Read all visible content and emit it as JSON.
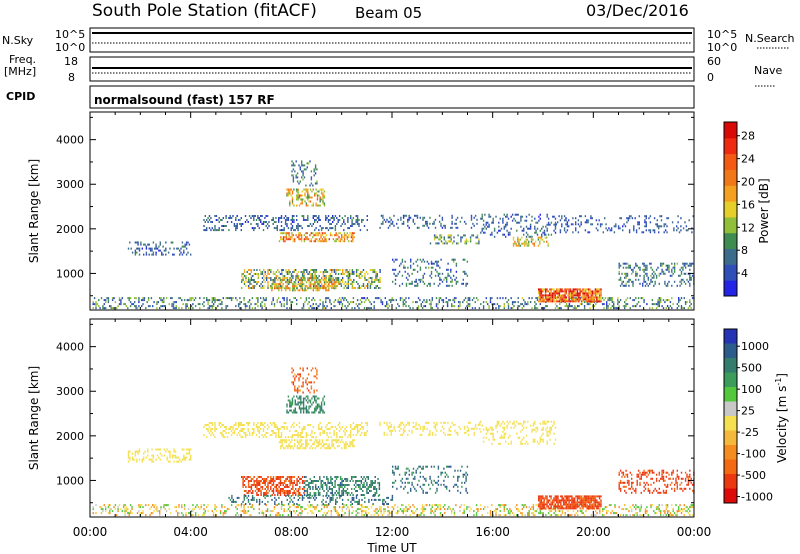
{
  "header": {
    "station": "South Pole Station (fitACF)",
    "beam": "Beam 05",
    "date": "03/Dec/2016"
  },
  "top_panels": {
    "nsky_label": "N.Sky",
    "nsky_ticks": [
      "10^5",
      "10^0"
    ],
    "nsearch_label": "N.Search",
    "nsearch_ticks": [
      "10^5",
      "10^0"
    ],
    "freq_label_1": "Freq.",
    "freq_label_2": "[MHz]",
    "freq_ticks": [
      "18",
      "8"
    ],
    "nave_label": "Nave",
    "nave_ticks": [
      "60",
      "0"
    ],
    "cpid_label": "CPID",
    "cpid_value": "normalsound (fast) 157 RF"
  },
  "chart_data": [
    {
      "type": "heatmap",
      "name": "power",
      "xlabel": "Time UT",
      "ylabel": "Slant Range [km]",
      "xlim": [
        0,
        24
      ],
      "ylim": [
        180,
        4620
      ],
      "x_ticks": [
        "00:00",
        "04:00",
        "08:00",
        "12:00",
        "16:00",
        "20:00",
        "00:00"
      ],
      "y_ticks": [
        1000,
        2000,
        3000,
        4000
      ],
      "colorbar": {
        "label": "Power [dB]",
        "tick_labels": [
          "4",
          "8",
          "12",
          "16",
          "20",
          "24",
          "28"
        ],
        "colors": [
          "#2424e6",
          "#2e4fb8",
          "#3c6c8c",
          "#3f8c52",
          "#91bf3a",
          "#e6cf2a",
          "#f4a020",
          "#f07818",
          "#f45a14",
          "#ee2a10",
          "#d80a08"
        ]
      },
      "echo_regions": [
        {
          "t": [
            0.1,
            24.0
          ],
          "r": [
            200,
            450
          ],
          "v": [
            4,
            14
          ],
          "density": 0.3
        },
        {
          "t": [
            17.8,
            20.3
          ],
          "r": [
            350,
            650
          ],
          "v": [
            14,
            30
          ],
          "density": 0.85
        },
        {
          "t": [
            6.0,
            11.5
          ],
          "r": [
            650,
            1100
          ],
          "v": [
            6,
            18
          ],
          "density": 0.45
        },
        {
          "t": [
            7.2,
            9.8
          ],
          "r": [
            600,
            900
          ],
          "v": [
            10,
            22
          ],
          "density": 0.5
        },
        {
          "t": [
            1.5,
            4.0
          ],
          "r": [
            1400,
            1700
          ],
          "v": [
            4,
            10
          ],
          "density": 0.3
        },
        {
          "t": [
            4.5,
            11.0
          ],
          "r": [
            1950,
            2300
          ],
          "v": [
            4,
            10
          ],
          "density": 0.3
        },
        {
          "t": [
            7.5,
            10.5
          ],
          "r": [
            1700,
            1900
          ],
          "v": [
            12,
            24
          ],
          "density": 0.55
        },
        {
          "t": [
            7.8,
            9.3
          ],
          "r": [
            2500,
            2900
          ],
          "v": [
            10,
            22
          ],
          "density": 0.45
        },
        {
          "t": [
            8.0,
            9.0
          ],
          "r": [
            2950,
            3500
          ],
          "v": [
            4,
            12
          ],
          "density": 0.25
        },
        {
          "t": [
            11.5,
            15.5
          ],
          "r": [
            2000,
            2300
          ],
          "v": [
            4,
            10
          ],
          "density": 0.25
        },
        {
          "t": [
            13.5,
            15.5
          ],
          "r": [
            1650,
            1850
          ],
          "v": [
            6,
            16
          ],
          "density": 0.35
        },
        {
          "t": [
            15.5,
            18.5
          ],
          "r": [
            1800,
            2300
          ],
          "v": [
            4,
            10
          ],
          "density": 0.25
        },
        {
          "t": [
            16.8,
            18.2
          ],
          "r": [
            1600,
            1800
          ],
          "v": [
            10,
            20
          ],
          "density": 0.4
        },
        {
          "t": [
            18.5,
            24.0
          ],
          "r": [
            1900,
            2300
          ],
          "v": [
            4,
            9
          ],
          "density": 0.2
        },
        {
          "t": [
            21.0,
            24.0
          ],
          "r": [
            700,
            1200
          ],
          "v": [
            5,
            12
          ],
          "density": 0.3
        },
        {
          "t": [
            12.0,
            15.0
          ],
          "r": [
            700,
            1300
          ],
          "v": [
            4,
            12
          ],
          "density": 0.2
        }
      ]
    },
    {
      "type": "heatmap",
      "name": "velocity",
      "xlabel": "Time UT",
      "ylabel": "Slant Range [km]",
      "xlim": [
        0,
        24
      ],
      "ylim": [
        180,
        4620
      ],
      "x_ticks": [
        "00:00",
        "04:00",
        "08:00",
        "12:00",
        "16:00",
        "20:00",
        "00:00"
      ],
      "y_ticks": [
        1000,
        2000,
        3000,
        4000
      ],
      "colorbar": {
        "label": "Velocity [m s^-1]",
        "tick_labels": [
          "1000",
          "500",
          "100",
          "25",
          "-25",
          "-100",
          "-500",
          "-1000"
        ],
        "colors": [
          "#2434b4",
          "#2c5c8c",
          "#347c6c",
          "#3c9c5c",
          "#54c83c",
          "#c8c8c8",
          "#f4e050",
          "#f4b83c",
          "#f48c20",
          "#f46a14",
          "#ec3810",
          "#dc0a08"
        ]
      },
      "echo_regions": [
        {
          "t": [
            0.1,
            24.0
          ],
          "r": [
            200,
            450
          ],
          "v": [
            -100,
            100
          ],
          "density": 0.3
        },
        {
          "t": [
            17.8,
            20.3
          ],
          "r": [
            350,
            650
          ],
          "v": [
            -500,
            -150
          ],
          "density": 0.85
        },
        {
          "t": [
            6.0,
            8.5
          ],
          "r": [
            650,
            1100
          ],
          "v": [
            -500,
            -150
          ],
          "density": 0.55
        },
        {
          "t": [
            8.5,
            11.5
          ],
          "r": [
            650,
            1100
          ],
          "v": [
            100,
            600
          ],
          "density": 0.45
        },
        {
          "t": [
            1.5,
            4.0
          ],
          "r": [
            1400,
            1700
          ],
          "v": [
            -20,
            20
          ],
          "density": 0.3
        },
        {
          "t": [
            4.5,
            11.0
          ],
          "r": [
            1950,
            2300
          ],
          "v": [
            -20,
            20
          ],
          "density": 0.35
        },
        {
          "t": [
            7.5,
            10.5
          ],
          "r": [
            1700,
            1900
          ],
          "v": [
            -20,
            20
          ],
          "density": 0.5
        },
        {
          "t": [
            7.8,
            9.3
          ],
          "r": [
            2500,
            2900
          ],
          "v": [
            100,
            400
          ],
          "density": 0.45
        },
        {
          "t": [
            8.0,
            9.0
          ],
          "r": [
            2950,
            3500
          ],
          "v": [
            -300,
            -50
          ],
          "density": 0.25
        },
        {
          "t": [
            11.5,
            15.5
          ],
          "r": [
            2000,
            2300
          ],
          "v": [
            -20,
            20
          ],
          "density": 0.25
        },
        {
          "t": [
            15.5,
            18.5
          ],
          "r": [
            1800,
            2300
          ],
          "v": [
            -20,
            20
          ],
          "density": 0.25
        },
        {
          "t": [
            21.0,
            24.0
          ],
          "r": [
            700,
            1200
          ],
          "v": [
            -500,
            -150
          ],
          "density": 0.3
        },
        {
          "t": [
            12.0,
            15.0
          ],
          "r": [
            700,
            1300
          ],
          "v": [
            100,
            800
          ],
          "density": 0.2
        },
        {
          "t": [
            5.5,
            12.0
          ],
          "r": [
            450,
            650
          ],
          "v": [
            100,
            1000
          ],
          "density": 0.25
        }
      ]
    }
  ]
}
